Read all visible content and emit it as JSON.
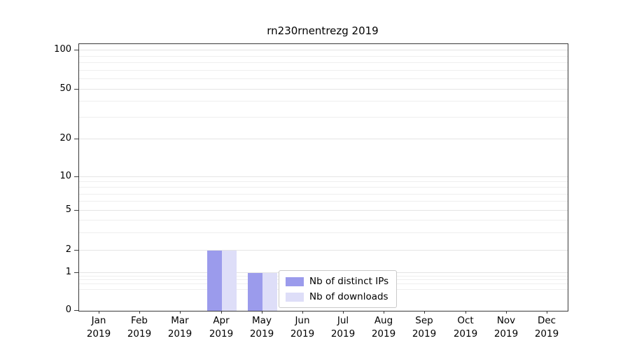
{
  "chart_data": {
    "type": "bar",
    "title": "rn230rnentrezg 2019",
    "categories": [
      "Jan 2019",
      "Feb 2019",
      "Mar 2019",
      "Apr 2019",
      "May 2019",
      "Jun 2019",
      "Jul 2019",
      "Aug 2019",
      "Sep 2019",
      "Oct 2019",
      "Nov 2019",
      "Dec 2019"
    ],
    "series": [
      {
        "key": "distinct-ips",
        "name": "Nb of distinct IPs",
        "color": "#9b9bec",
        "values": [
          0,
          0,
          0,
          2,
          1,
          0,
          0,
          0,
          0,
          0,
          0,
          0
        ]
      },
      {
        "key": "downloads",
        "name": "Nb of downloads",
        "color": "#dedef8",
        "values": [
          0,
          0,
          0,
          2,
          1,
          0,
          0,
          0,
          0,
          0,
          0,
          0
        ]
      }
    ],
    "yticks": [
      0,
      1,
      2,
      5,
      10,
      20,
      50,
      100
    ],
    "ylim": [
      0,
      100
    ],
    "yscale": "log",
    "grid": "horizontal",
    "legend_position": "lower-center-inside",
    "background": "#ffffff"
  }
}
